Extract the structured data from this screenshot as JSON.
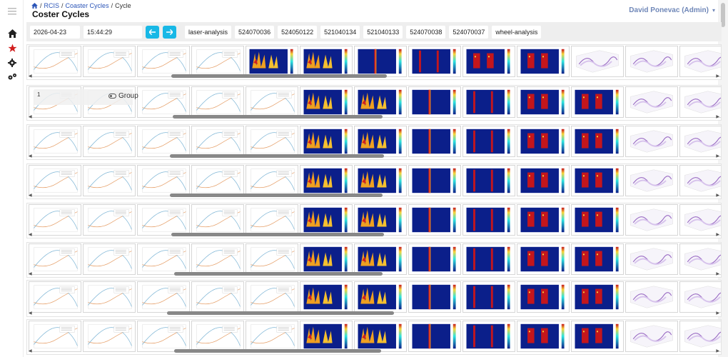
{
  "sidebar": {
    "menu_icon": "hamburger-icon",
    "items": [
      {
        "icon": "home-icon",
        "name": "home"
      },
      {
        "icon": "star-icon",
        "name": "favorites",
        "color": "#d21f1f"
      },
      {
        "icon": "gear-icon",
        "name": "settings"
      },
      {
        "icon": "gears-icon",
        "name": "advanced-settings"
      }
    ]
  },
  "breadcrumb": {
    "home_icon": "home-icon",
    "items": [
      "RCIS",
      "Coaster Cycles",
      "Cycle"
    ],
    "separator": "/"
  },
  "page": {
    "title": "Coster Cycles"
  },
  "user": {
    "name": "David Ponevac (Admin)",
    "caret": "▾",
    "color": "#6f87b8"
  },
  "toolbar": {
    "date": "2026-04-23",
    "time": "15:44:29",
    "prev_icon": "arrow-left-icon",
    "next_icon": "arrow-right-icon",
    "accent": "#18b8e6",
    "chips": [
      "laser-analysis",
      "524070036",
      "524050122",
      "521040134",
      "521040133",
      "524070038",
      "524070037",
      "wheel-analysis"
    ]
  },
  "group_overlay": {
    "number": "1",
    "label": "Group"
  },
  "rows": [
    {
      "pattern": "A"
    },
    {
      "pattern": "B"
    },
    {
      "pattern": "B"
    },
    {
      "pattern": "B"
    },
    {
      "pattern": "B"
    },
    {
      "pattern": "B"
    },
    {
      "pattern": "C"
    },
    {
      "pattern": "B"
    }
  ],
  "scroll_arrows": {
    "left": "◀",
    "right": "▶"
  }
}
